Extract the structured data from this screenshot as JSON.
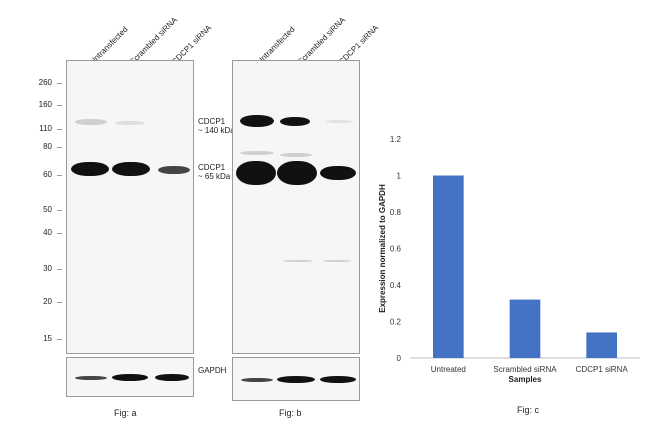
{
  "lanes": [
    "Untransfected",
    "Scrambled siRNA",
    "CDCP1 siRNA"
  ],
  "mw_markers": [
    "260",
    "160",
    "110",
    "80",
    "60",
    "50",
    "40",
    "30",
    "20",
    "15"
  ],
  "annotations": {
    "cdcp1_140": [
      "CDCP1",
      "~ 140 kDa"
    ],
    "cdcp1_65": [
      "CDCP1",
      "~ 65 kDa"
    ],
    "gapdh": "GAPDH"
  },
  "figs": {
    "a": "Fig: a",
    "b": "Fig: b",
    "c": "Fig: c"
  },
  "chart_data": {
    "type": "bar",
    "categories": [
      "Untreated",
      "Scrambled siRNA",
      "CDCP1 siRNA"
    ],
    "values": [
      1.0,
      0.32,
      0.14
    ],
    "xlabel": "Samples",
    "ylabel": "Expression normalized to GAPDH",
    "ylim": [
      0,
      1.2
    ],
    "yticks": [
      "0",
      "0.2",
      "0.4",
      "0.6",
      "0.8",
      "1",
      "1.2"
    ],
    "bar_color": "#4472c4",
    "grid": false
  }
}
